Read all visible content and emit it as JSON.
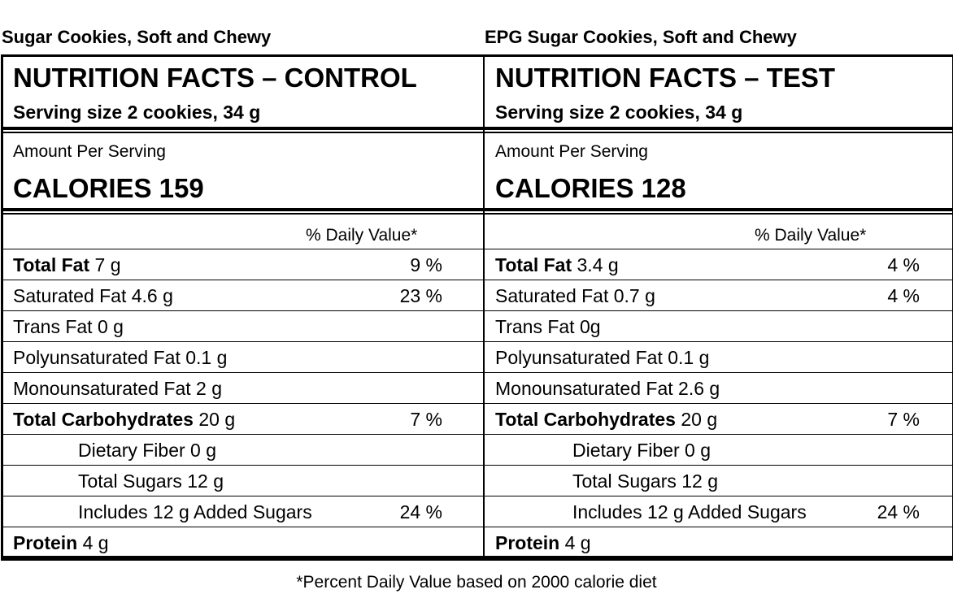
{
  "left": {
    "product": "Sugar Cookies, Soft and Chewy",
    "title": "NUTRITION FACTS – CONTROL",
    "serving": "Serving size 2 cookies, 34 g",
    "amount_label": "Amount Per Serving",
    "calories": "CALORIES 159",
    "dv_header": "% Daily Value*",
    "rows": [
      {
        "label": "Total Fat",
        "value": " 7 g",
        "pct": "9 %"
      },
      {
        "label": "Saturated Fat 4.6 g",
        "value": "",
        "pct": "23 %"
      },
      {
        "label": "Trans Fat 0 g",
        "value": "",
        "pct": ""
      },
      {
        "label": "Polyunsaturated Fat 0.1 g",
        "value": "",
        "pct": ""
      },
      {
        "label": "Monounsaturated Fat 2 g",
        "value": "",
        "pct": ""
      },
      {
        "label": "Total Carbohydrates",
        "value": " 20 g",
        "pct": "7 %"
      },
      {
        "label": "Dietary Fiber 0 g",
        "value": "",
        "pct": ""
      },
      {
        "label": "Total Sugars 12 g",
        "value": "",
        "pct": ""
      },
      {
        "label": "Includes 12 g Added Sugars",
        "value": "",
        "pct": "24 %"
      },
      {
        "label": "Protein",
        "value": " 4 g",
        "pct": ""
      }
    ]
  },
  "right": {
    "product": "EPG Sugar Cookies, Soft and Chewy",
    "title": "NUTRITION FACTS – TEST",
    "serving": "Serving size 2 cookies, 34 g",
    "amount_label": "Amount Per Serving",
    "calories": "CALORIES 128",
    "dv_header": "% Daily Value*",
    "rows": [
      {
        "label": "Total Fat",
        "value": " 3.4 g",
        "pct": "4 %"
      },
      {
        "label": "Saturated Fat 0.7 g",
        "value": "",
        "pct": "4 %"
      },
      {
        "label": "Trans Fat 0g",
        "value": "",
        "pct": ""
      },
      {
        "label": "Polyunsaturated Fat 0.1 g",
        "value": "",
        "pct": ""
      },
      {
        "label": "Monounsaturated Fat 2.6 g",
        "value": "",
        "pct": ""
      },
      {
        "label": "Total Carbohydrates",
        "value": " 20 g",
        "pct": "7 %"
      },
      {
        "label": "Dietary Fiber 0 g",
        "value": "",
        "pct": ""
      },
      {
        "label": "Total Sugars 12 g",
        "value": "",
        "pct": ""
      },
      {
        "label": "Includes 12 g Added Sugars",
        "value": "",
        "pct": "24 %"
      },
      {
        "label": "Protein",
        "value": " 4 g",
        "pct": ""
      }
    ]
  },
  "footnote": "*Percent Daily Value based on 2000 calorie diet"
}
